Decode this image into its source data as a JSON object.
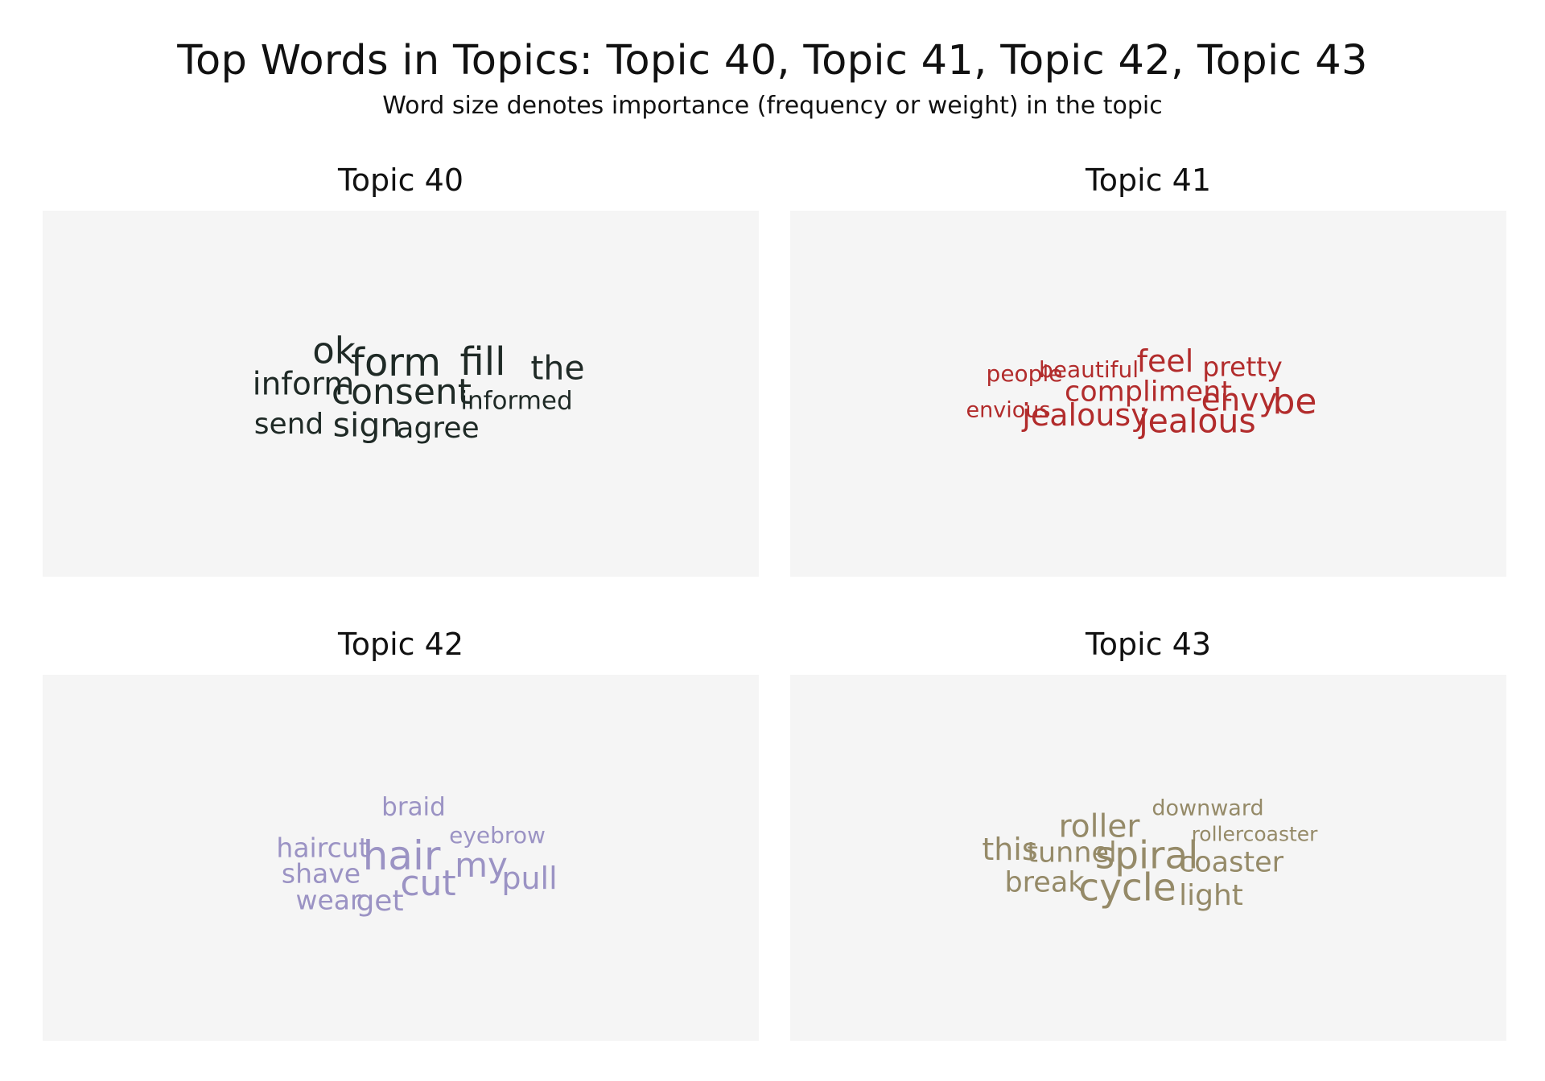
{
  "title": "Top Words in Topics: Topic 40, Topic 41, Topic 42, Topic 43",
  "subtitle": "Word size denotes importance (frequency or weight) in the topic",
  "chart_data": [
    {
      "type": "wordcloud",
      "title": "Topic 40",
      "color": "#1f2a26",
      "words": [
        {
          "text": "ok",
          "weight": 0.85
        },
        {
          "text": "form",
          "weight": 0.95
        },
        {
          "text": "fill",
          "weight": 0.95
        },
        {
          "text": "the",
          "weight": 0.7
        },
        {
          "text": "inform",
          "weight": 0.65
        },
        {
          "text": "consent",
          "weight": 0.8
        },
        {
          "text": "informed",
          "weight": 0.4
        },
        {
          "text": "send",
          "weight": 0.55
        },
        {
          "text": "sign",
          "weight": 0.7
        },
        {
          "text": "agree",
          "weight": 0.55
        }
      ]
    },
    {
      "type": "wordcloud",
      "title": "Topic 41",
      "color": "#b22c2c",
      "words": [
        {
          "text": "people",
          "weight": 0.3
        },
        {
          "text": "beautiful",
          "weight": 0.3
        },
        {
          "text": "feel",
          "weight": 0.6
        },
        {
          "text": "pretty",
          "weight": 0.45
        },
        {
          "text": "compliment",
          "weight": 0.5
        },
        {
          "text": "envious",
          "weight": 0.25
        },
        {
          "text": "jealousy",
          "weight": 0.6
        },
        {
          "text": "envy",
          "weight": 0.65
        },
        {
          "text": "be",
          "weight": 0.8
        },
        {
          "text": "jealous",
          "weight": 0.7
        }
      ]
    },
    {
      "type": "wordcloud",
      "title": "Topic 42",
      "color": "#9b93c4",
      "words": [
        {
          "text": "braid",
          "weight": 0.4
        },
        {
          "text": "eyebrow",
          "weight": 0.3
        },
        {
          "text": "haircut",
          "weight": 0.45
        },
        {
          "text": "hair",
          "weight": 1.0
        },
        {
          "text": "shave",
          "weight": 0.45
        },
        {
          "text": "my",
          "weight": 0.75
        },
        {
          "text": "cut",
          "weight": 0.8
        },
        {
          "text": "pull",
          "weight": 0.6
        },
        {
          "text": "wear",
          "weight": 0.45
        },
        {
          "text": "get",
          "weight": 0.55
        }
      ]
    },
    {
      "type": "wordcloud",
      "title": "Topic 43",
      "color": "#958a68",
      "words": [
        {
          "text": "downward",
          "weight": 0.25
        },
        {
          "text": "roller",
          "weight": 0.65
        },
        {
          "text": "rollercoaster",
          "weight": 0.2
        },
        {
          "text": "this",
          "weight": 0.6
        },
        {
          "text": "tunnel",
          "weight": 0.5
        },
        {
          "text": "spiral",
          "weight": 0.9
        },
        {
          "text": "coaster",
          "weight": 0.5
        },
        {
          "text": "break",
          "weight": 0.5
        },
        {
          "text": "cycle",
          "weight": 0.9
        },
        {
          "text": "light",
          "weight": 0.55
        }
      ]
    }
  ]
}
